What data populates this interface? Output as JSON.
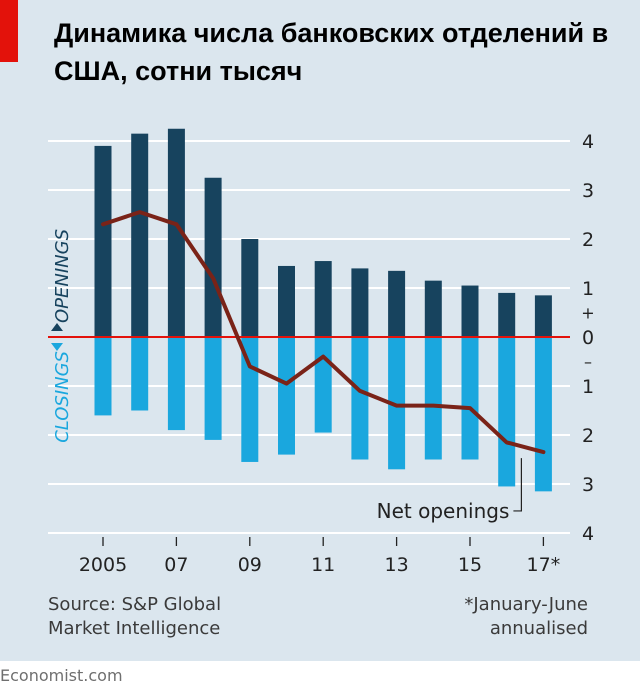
{
  "title": "Динамика числа банковских отделений в США, сотни тысяч",
  "source": "Source: S&P Global\nMarket Intelligence",
  "footnote": "*January-June\nannualised",
  "credit": "Economist.com",
  "colors": {
    "background": "#dbe6ee",
    "openings": "#17435e",
    "closings": "#1aa7de",
    "net_line": "#7a2318",
    "zero_line": "#e3120b",
    "accent": "#e3120b"
  },
  "chart_data": {
    "type": "bar",
    "x": [
      2005,
      2006,
      2007,
      2008,
      2009,
      2010,
      2011,
      2012,
      2013,
      2014,
      2015,
      2016,
      2017
    ],
    "xtick_labels": [
      "2005",
      "07",
      "09",
      "11",
      "13",
      "15",
      "17*"
    ],
    "xtick_years": [
      2005,
      2007,
      2009,
      2011,
      2013,
      2015,
      2017
    ],
    "ylim": [
      -4,
      4
    ],
    "ytick_labels": [
      "4",
      "3",
      "2",
      "1",
      "0",
      "1",
      "2",
      "3",
      "4"
    ],
    "ytick_values": [
      4,
      3,
      2,
      1,
      0,
      -1,
      -2,
      -3,
      -4
    ],
    "sign_plus": "+",
    "sign_minus": "–",
    "openings_label": "OPENINGS",
    "closings_label": "CLOSINGS",
    "series": [
      {
        "name": "Openings",
        "values": [
          3.9,
          4.15,
          4.25,
          3.25,
          2.0,
          1.45,
          1.55,
          1.4,
          1.35,
          1.15,
          1.05,
          0.9,
          0.85
        ]
      },
      {
        "name": "Closings",
        "values": [
          -1.6,
          -1.5,
          -1.9,
          -2.1,
          -2.55,
          -2.4,
          -1.95,
          -2.5,
          -2.7,
          -2.5,
          -2.5,
          -3.05,
          -3.15
        ]
      },
      {
        "name": "Net openings",
        "type": "line",
        "values": [
          2.3,
          2.55,
          2.3,
          1.2,
          -0.6,
          -0.95,
          -0.4,
          -1.1,
          -1.4,
          -1.4,
          -1.45,
          -2.15,
          -2.35
        ]
      }
    ]
  }
}
